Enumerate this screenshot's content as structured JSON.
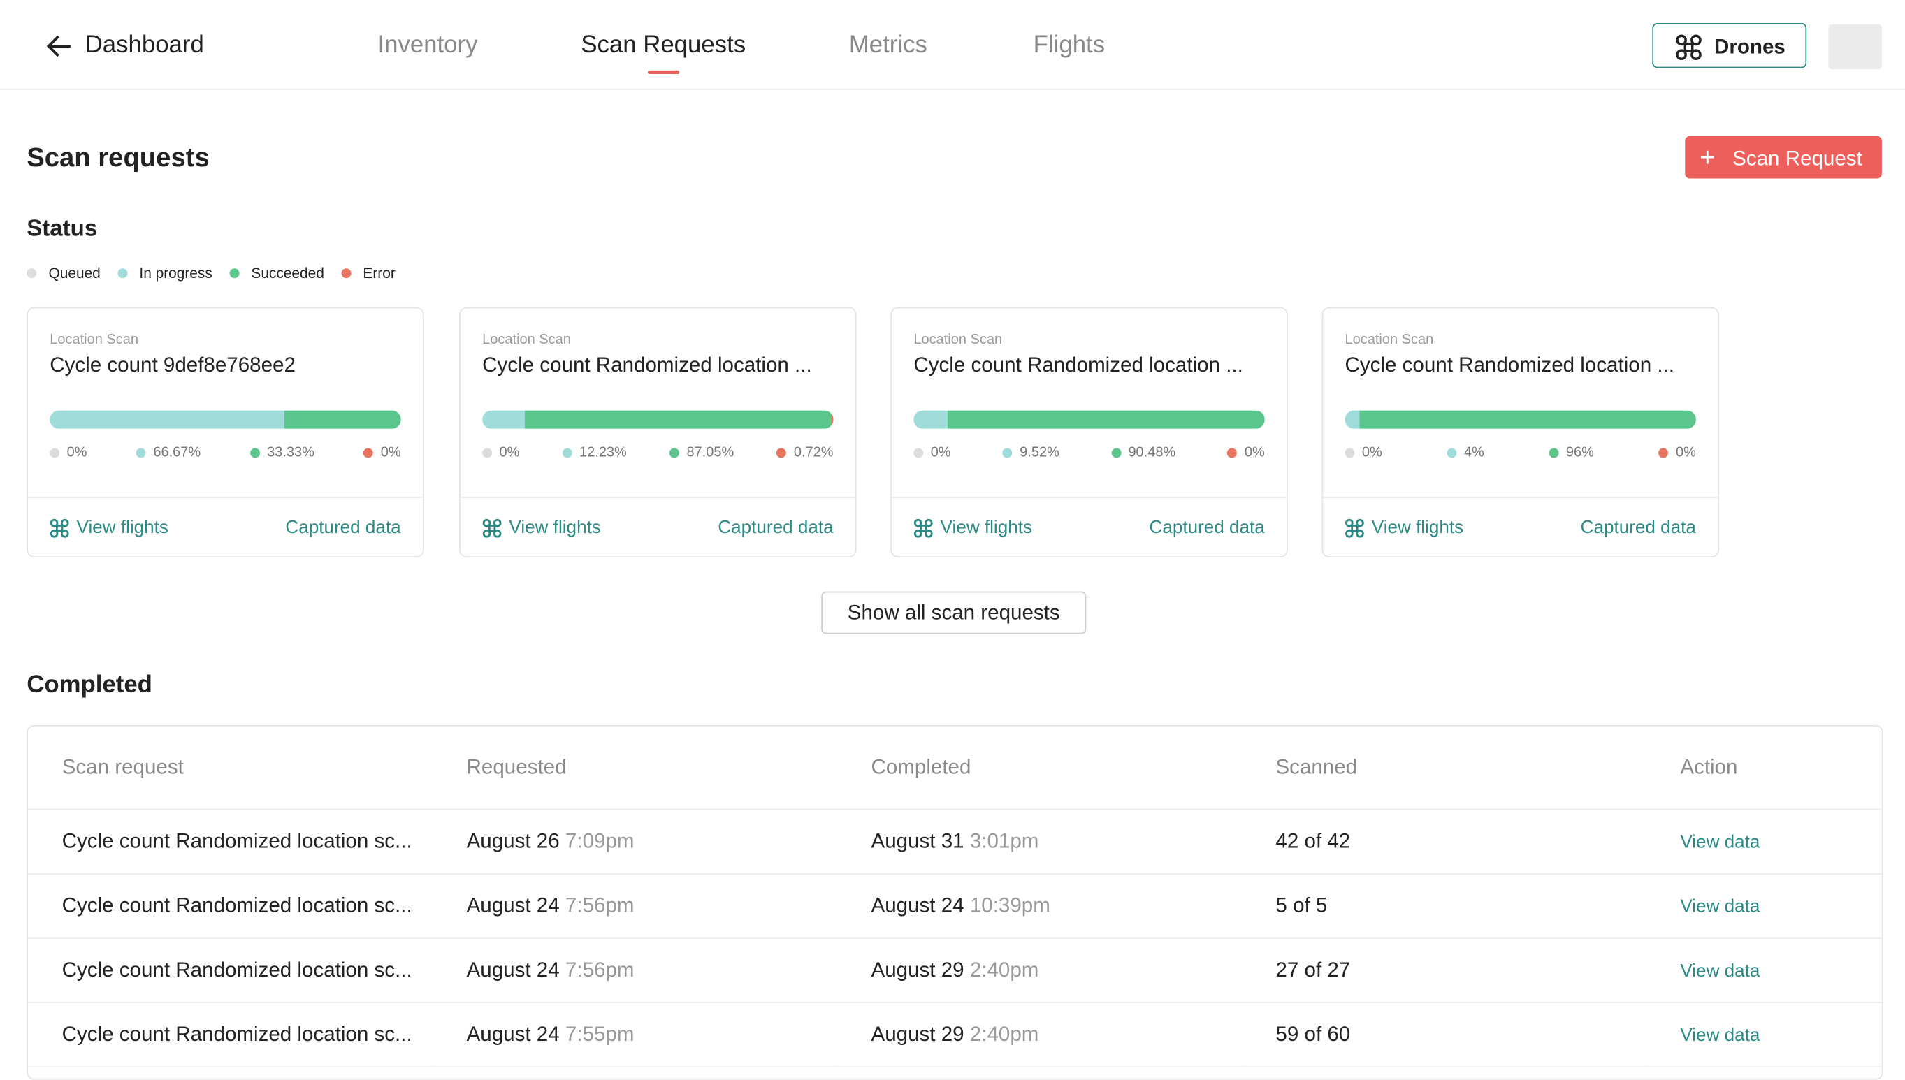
{
  "header": {
    "back": "Dashboard",
    "nav": [
      "Inventory",
      "Scan Requests",
      "Metrics",
      "Flights"
    ],
    "active": 1,
    "drones": "Drones"
  },
  "page": {
    "title": "Scan requests",
    "new_button": "Scan Request",
    "status_title": "Status",
    "show_all": "Show all scan requests",
    "completed_title": "Completed"
  },
  "statuses": [
    {
      "name": "Queued",
      "color": "#dcdcdc"
    },
    {
      "name": "In progress",
      "color": "#9fdcd9"
    },
    {
      "name": "Succeeded",
      "color": "#5bc58b"
    },
    {
      "name": "Error",
      "color": "#e8735f"
    }
  ],
  "cards": [
    {
      "label": "Location Scan",
      "title": "Cycle count 9def8e768ee2",
      "values": [
        0,
        66.67,
        33.33,
        0
      ],
      "value_labels": [
        "0%",
        "66.67%",
        "33.33%",
        "0%"
      ],
      "links": [
        "View flights",
        "Captured data"
      ]
    },
    {
      "label": "Location Scan",
      "title": "Cycle count Randomized location ...",
      "values": [
        0,
        12.23,
        87.05,
        0.72
      ],
      "value_labels": [
        "0%",
        "12.23%",
        "87.05%",
        "0.72%"
      ],
      "links": [
        "View flights",
        "Captured data"
      ]
    },
    {
      "label": "Location Scan",
      "title": "Cycle count Randomized location ...",
      "values": [
        0,
        9.52,
        90.48,
        0
      ],
      "value_labels": [
        "0%",
        "9.52%",
        "90.48%",
        "0%"
      ],
      "links": [
        "View flights",
        "Captured data"
      ]
    },
    {
      "label": "Location Scan",
      "title": "Cycle count Randomized location ...",
      "values": [
        0,
        4,
        96,
        0
      ],
      "value_labels": [
        "0%",
        "4%",
        "96%",
        "0%"
      ],
      "links": [
        "View flights",
        "Captured data"
      ]
    }
  ],
  "table": {
    "columns": [
      "Scan request",
      "Requested",
      "Completed",
      "Scanned",
      "Action"
    ],
    "rows": [
      [
        "Cycle count Randomized location sc...",
        "August 26",
        "7:09pm",
        "August 31",
        "3:01pm",
        "42 of 42",
        "View data"
      ],
      [
        "Cycle count Randomized location sc...",
        "August 24",
        "7:56pm",
        "August 24",
        "10:39pm",
        "5 of 5",
        "View data"
      ],
      [
        "Cycle count Randomized location sc...",
        "August 24",
        "7:56pm",
        "August 29",
        "2:40pm",
        "27 of 27",
        "View data"
      ],
      [
        "Cycle count Randomized location sc...",
        "August 24",
        "7:55pm",
        "August 29",
        "2:40pm",
        "59 of 60",
        "View data"
      ]
    ]
  }
}
